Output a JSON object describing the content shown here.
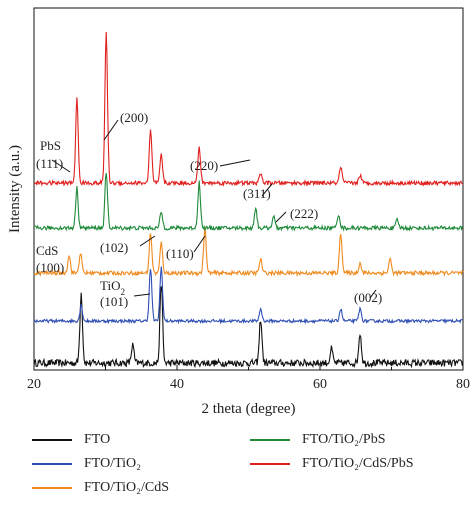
{
  "chart_data": {
    "type": "line",
    "xlabel": "2 theta (degree)",
    "ylabel": "Intensity (a.u.)",
    "xlim": [
      20,
      80
    ],
    "xticks": [
      "20",
      "40",
      "60",
      "80"
    ],
    "grid": false,
    "legend_position": "bottom",
    "series": [
      {
        "name": "FTO",
        "color": "#111111",
        "baseline": 0,
        "noise": 7,
        "peaks": [
          [
            26.6,
            70
          ],
          [
            33.8,
            18
          ],
          [
            37.8,
            80
          ],
          [
            51.7,
            44
          ],
          [
            61.6,
            14
          ],
          [
            65.6,
            30
          ]
        ]
      },
      {
        "name": "FTO/TiO₂",
        "color": "#2f4fb5",
        "baseline": 1,
        "noise": 3,
        "peaks": [
          [
            26.6,
            16
          ],
          [
            36.3,
            52
          ],
          [
            37.8,
            54
          ],
          [
            51.7,
            12
          ],
          [
            62.9,
            12
          ],
          [
            65.6,
            12
          ]
        ]
      },
      {
        "name": "FTO/TiO₂/CdS",
        "color": "#f08a1e",
        "baseline": 2,
        "noise": 4,
        "peaks": [
          [
            24.9,
            18
          ],
          [
            26.5,
            20
          ],
          [
            36.3,
            40
          ],
          [
            37.8,
            30
          ],
          [
            43.9,
            45
          ],
          [
            51.7,
            14
          ],
          [
            62.9,
            40
          ],
          [
            65.6,
            10
          ],
          [
            69.8,
            14
          ]
        ]
      },
      {
        "name": "FTO/TiO₂/PbS",
        "color": "#1f8a3a",
        "baseline": 3,
        "noise": 4,
        "peaks": [
          [
            26.0,
            40
          ],
          [
            30.1,
            56
          ],
          [
            37.8,
            16
          ],
          [
            43.1,
            46
          ],
          [
            51.0,
            20
          ],
          [
            53.5,
            12
          ],
          [
            62.6,
            14
          ],
          [
            70.8,
            8
          ]
        ]
      },
      {
        "name": "FTO/TiO₂/CdS/PbS",
        "color": "#e0201e",
        "baseline": 4,
        "noise": 4,
        "peaks": [
          [
            26.0,
            84
          ],
          [
            30.1,
            152
          ],
          [
            36.3,
            52
          ],
          [
            37.8,
            28
          ],
          [
            43.1,
            36
          ],
          [
            51.7,
            10
          ],
          [
            62.9,
            16
          ],
          [
            65.6,
            8
          ]
        ]
      }
    ],
    "annotations": [
      {
        "text": "PbS",
        "sub": "",
        "after": ""
      },
      {
        "text": "(111)",
        "sub": "",
        "after": ""
      },
      {
        "text": "(200)",
        "sub": "",
        "after": ""
      },
      {
        "text": "(220)",
        "sub": "",
        "after": ""
      },
      {
        "text": "(311)",
        "sub": "",
        "after": ""
      },
      {
        "text": "(222)",
        "sub": "",
        "after": ""
      },
      {
        "text": "CdS",
        "sub": "",
        "after": ""
      },
      {
        "text": "(100)",
        "sub": "",
        "after": ""
      },
      {
        "text": "(102)",
        "sub": "",
        "after": ""
      },
      {
        "text": "(110)",
        "sub": "",
        "after": ""
      },
      {
        "text": "TiO",
        "sub": "2",
        "after": ""
      },
      {
        "text": "(101)",
        "sub": "",
        "after": ""
      },
      {
        "text": "(002)",
        "sub": "",
        "after": ""
      }
    ]
  }
}
